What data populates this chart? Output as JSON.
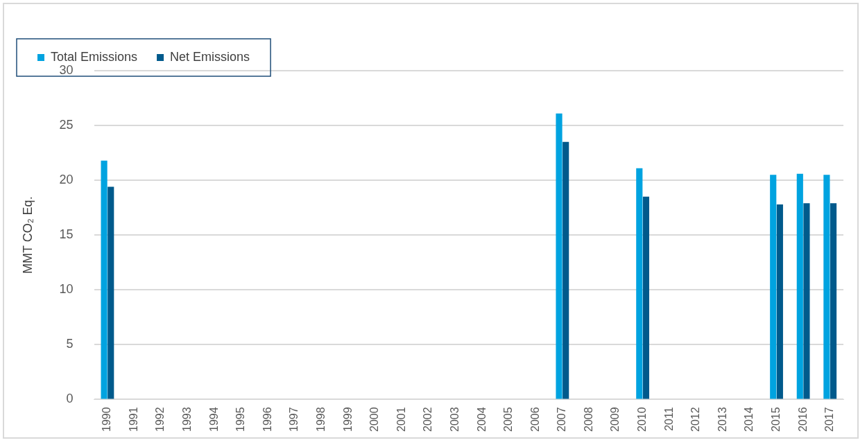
{
  "chart_data": {
    "type": "bar",
    "ylabel": "MMT CO₂ Eq.",
    "categories": [
      "1990",
      "1991",
      "1992",
      "1993",
      "1994",
      "1995",
      "1996",
      "1997",
      "1998",
      "1999",
      "2000",
      "2001",
      "2002",
      "2003",
      "2004",
      "2005",
      "2006",
      "2007",
      "2008",
      "2009",
      "2010",
      "2011",
      "2012",
      "2013",
      "2014",
      "2015",
      "2016",
      "2017"
    ],
    "series": [
      {
        "name": "Total Emissions",
        "color": "#00a3e0",
        "values": [
          21.8,
          null,
          null,
          null,
          null,
          null,
          null,
          null,
          null,
          null,
          null,
          null,
          null,
          null,
          null,
          null,
          null,
          26.1,
          null,
          null,
          21.1,
          null,
          null,
          null,
          null,
          20.5,
          20.6,
          20.5
        ]
      },
      {
        "name": "Net Emissions",
        "color": "#005a8c",
        "values": [
          19.4,
          null,
          null,
          null,
          null,
          null,
          null,
          null,
          null,
          null,
          null,
          null,
          null,
          null,
          null,
          null,
          null,
          23.5,
          null,
          null,
          18.5,
          null,
          null,
          null,
          null,
          17.8,
          17.9,
          17.9
        ]
      }
    ],
    "ylim": [
      0,
      30
    ],
    "yticks": [
      0,
      5,
      10,
      15,
      20,
      25,
      30
    ],
    "grid": "y",
    "legend": "top left"
  }
}
